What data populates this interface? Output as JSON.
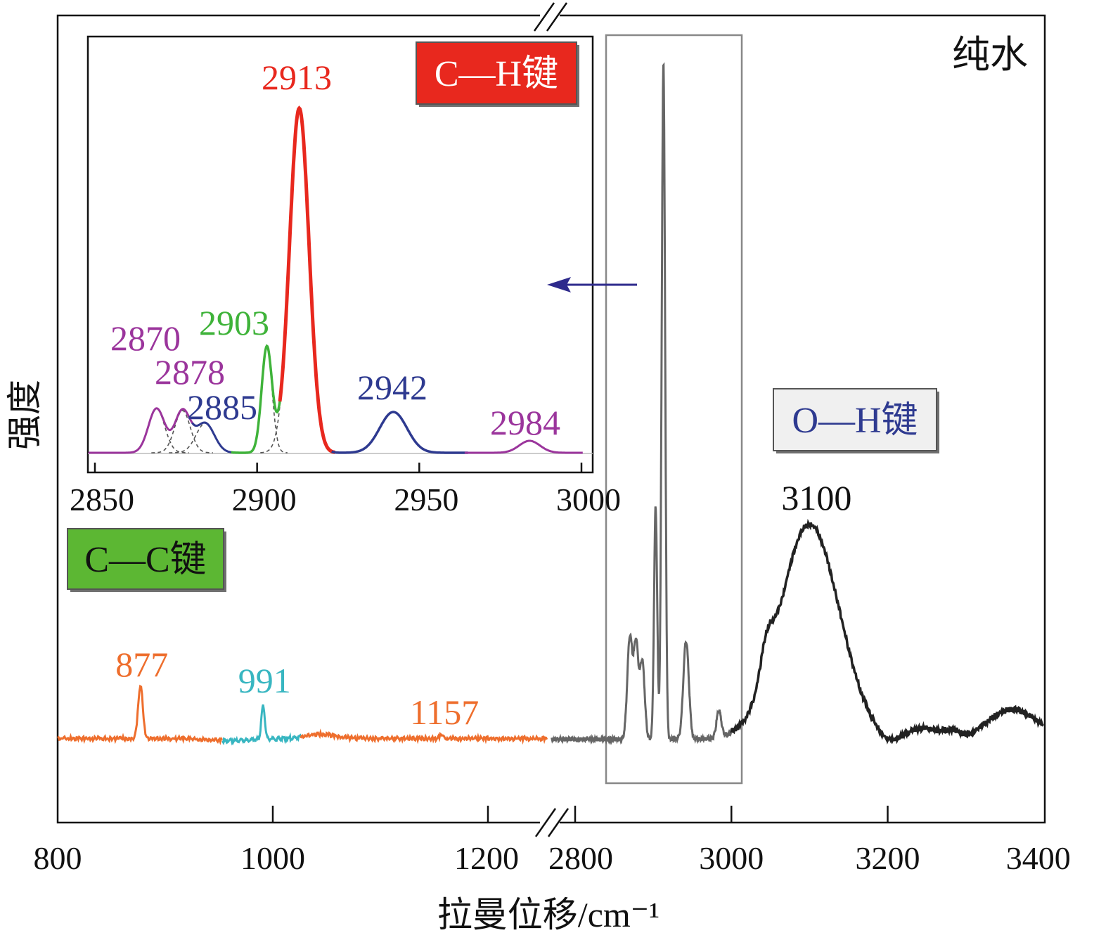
{
  "chart_data": {
    "type": "line",
    "sample_label": "纯水",
    "xlabel": "拉曼位移/cm⁻¹",
    "ylabel": "强度",
    "x_axis": {
      "broken": true,
      "segments": [
        {
          "range": [
            800,
            1250
          ],
          "ticks": [
            800,
            1000,
            1200
          ]
        },
        {
          "range": [
            2790,
            3400
          ],
          "ticks": [
            2800,
            3000,
            3200,
            3400
          ]
        }
      ]
    },
    "region_labels": [
      {
        "name": "C—C键",
        "color": "#5cb733"
      },
      {
        "name": "C—H键",
        "color": "#e8281e"
      },
      {
        "name": "O—H键",
        "color": "#f0f0f0"
      }
    ],
    "series": [
      {
        "segment": "left",
        "color": "#ee6e2d",
        "peaks": [
          {
            "x": 877,
            "label": "877",
            "label_color": "#ee6e2d"
          },
          {
            "x": 991,
            "label": "991",
            "label_color": "#38b6c1"
          },
          {
            "x": 1157,
            "label": "1157",
            "label_color": "#ee6e2d"
          }
        ]
      },
      {
        "segment": "right",
        "color": "#333333",
        "peaks": [
          {
            "x": 3100,
            "label": "3100",
            "label_color": "#111111"
          }
        ]
      }
    ],
    "inset": {
      "xlim": [
        2850,
        3000
      ],
      "ticks": [
        2850,
        2900,
        2950,
        3000
      ],
      "highlight_range": [
        2840,
        3010
      ],
      "fitted_peaks": [
        {
          "x": 2870,
          "label": "2870",
          "color": "#9b359c"
        },
        {
          "x": 2878,
          "label": "2878",
          "color": "#9b359c"
        },
        {
          "x": 2885,
          "label": "2885",
          "color": "#2e3a90"
        },
        {
          "x": 2903,
          "label": "2903",
          "color": "#3fb33a"
        },
        {
          "x": 2913,
          "label": "2913",
          "color": "#e8281e"
        },
        {
          "x": 2942,
          "label": "2942",
          "color": "#2e3a90"
        },
        {
          "x": 2984,
          "label": "2984",
          "color": "#9b359c"
        }
      ]
    }
  }
}
